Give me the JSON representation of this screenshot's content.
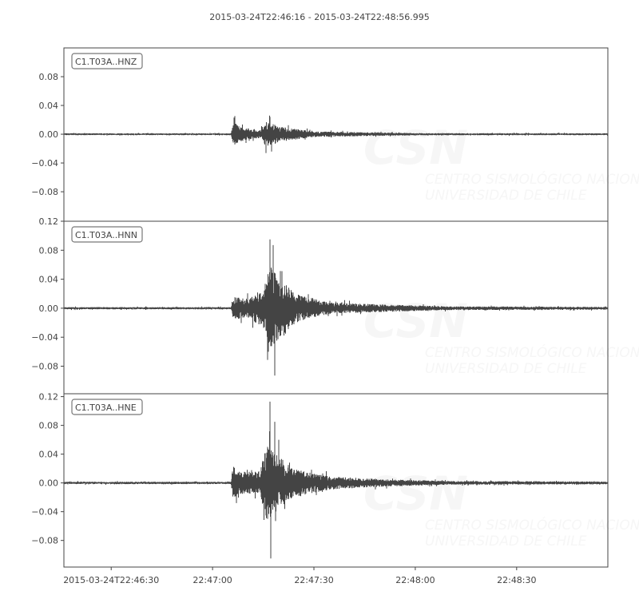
{
  "chart_data": {
    "type": "line",
    "title": "2015-03-24T22:46:16  -  2015-03-24T22:48:56.995",
    "x_start": "2015-03-24T22:46:16",
    "x_end": "2015-03-24T22:48:56.995",
    "x_ticks": [
      "22:46:30",
      "22:47:00",
      "22:47:30",
      "22:48:00",
      "22:48:30"
    ],
    "x_tick_labels": [
      "2015-03-24T22:46:30",
      "22:47:00",
      "22:47:30",
      "22:48:00",
      "22:48:30"
    ],
    "line_color": "#444444",
    "grid": false,
    "watermark": {
      "logo": "CSN",
      "line1": "CENTRO SISMOLÓGICO NACIONAL",
      "line2": "UNIVERSIDAD DE CHILE"
    },
    "traces": [
      {
        "name": "C1.T03A..HNZ",
        "ylim": [
          -0.121,
          0.12
        ],
        "y_ticks": [
          0.08,
          0.04,
          0.0,
          -0.04,
          -0.08
        ],
        "y_tick_labels": [
          "0.08",
          "0.04",
          "0.00",
          "−0.04",
          "−0.08"
        ],
        "envelope": [
          [
            "22:46:16",
            0.001
          ],
          [
            "22:47:05.5",
            0.001
          ],
          [
            "22:47:06",
            0.014
          ],
          [
            "22:47:08",
            0.008
          ],
          [
            "22:47:14",
            0.004
          ],
          [
            "22:47:16",
            0.014
          ],
          [
            "22:47:20",
            0.008
          ],
          [
            "22:47:30",
            0.003
          ],
          [
            "22:48:00",
            0.0012
          ],
          [
            "22:48:57",
            0.001
          ]
        ],
        "peaks": [
          [
            "22:47:06.3",
            0.023
          ],
          [
            "22:47:06.8",
            -0.01
          ],
          [
            "22:47:17",
            0.024
          ],
          [
            "22:47:17.5",
            -0.024
          ]
        ]
      },
      {
        "name": "C1.T03A..HNN",
        "ylim": [
          -0.118,
          0.12
        ],
        "y_ticks": [
          0.12,
          0.08,
          0.04,
          0.0,
          -0.04,
          -0.08
        ],
        "y_tick_labels": [
          "0.12",
          "0.08",
          "0.04",
          "0.00",
          "−0.04",
          "−0.08"
        ],
        "envelope": [
          [
            "22:46:16",
            0.0012
          ],
          [
            "22:47:05.5",
            0.0012
          ],
          [
            "22:47:06",
            0.012
          ],
          [
            "22:47:10",
            0.01
          ],
          [
            "22:47:15",
            0.02
          ],
          [
            "22:47:17",
            0.045
          ],
          [
            "22:47:20",
            0.03
          ],
          [
            "22:47:25",
            0.015
          ],
          [
            "22:47:35",
            0.006
          ],
          [
            "22:47:50",
            0.004
          ],
          [
            "22:48:10",
            0.002
          ],
          [
            "22:48:57",
            0.0015
          ]
        ],
        "peaks": [
          [
            "22:47:17",
            0.095
          ],
          [
            "22:47:18",
            0.087
          ],
          [
            "22:47:18.5",
            -0.093
          ],
          [
            "22:47:16.5",
            -0.06
          ]
        ]
      },
      {
        "name": "C1.T03A..HNE",
        "ylim": [
          -0.117,
          0.124
        ],
        "y_ticks": [
          0.12,
          0.08,
          0.04,
          0.0,
          -0.04,
          -0.08
        ],
        "y_tick_labels": [
          "0.12",
          "0.08",
          "0.04",
          "0.00",
          "−0.04",
          "−0.08"
        ],
        "envelope": [
          [
            "22:46:16",
            0.0013
          ],
          [
            "22:47:05.5",
            0.0013
          ],
          [
            "22:47:06",
            0.018
          ],
          [
            "22:47:08",
            0.012
          ],
          [
            "22:47:14",
            0.012
          ],
          [
            "22:47:16",
            0.04
          ],
          [
            "22:47:19",
            0.03
          ],
          [
            "22:47:24",
            0.015
          ],
          [
            "22:47:35",
            0.007
          ],
          [
            "22:47:50",
            0.004
          ],
          [
            "22:48:10",
            0.002
          ],
          [
            "22:48:57",
            0.0015
          ]
        ],
        "peaks": [
          [
            "22:47:17",
            0.113
          ],
          [
            "22:47:17.2",
            -0.105
          ],
          [
            "22:47:18.5",
            0.085
          ],
          [
            "22:47:19.5",
            0.06
          ],
          [
            "22:47:07",
            -0.028
          ]
        ]
      }
    ]
  }
}
